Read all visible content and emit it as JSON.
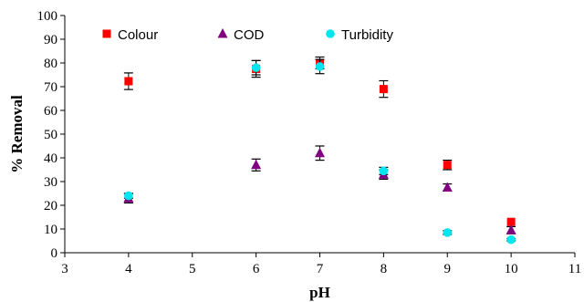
{
  "chart_data": {
    "type": "scatter",
    "xlabel": "pH",
    "ylabel": "% Removal",
    "xlim": [
      3,
      11
    ],
    "ylim": [
      0,
      100
    ],
    "xticks": [
      3,
      4,
      5,
      6,
      7,
      8,
      9,
      10,
      11
    ],
    "yticks": [
      0,
      10,
      20,
      30,
      40,
      50,
      60,
      70,
      80,
      90,
      100
    ],
    "grid": false,
    "legend_position": "top-left",
    "series": [
      {
        "name": "Colour",
        "marker": "square",
        "color": "#ff0000",
        "x": [
          4,
          6,
          7,
          8,
          9,
          10
        ],
        "y": [
          72.3,
          77.5,
          80,
          69,
          37,
          13
        ],
        "err": [
          3.5,
          3.5,
          2.5,
          3.5,
          2,
          0
        ]
      },
      {
        "name": "COD",
        "marker": "triangle",
        "color": "#800080",
        "x": [
          4,
          6,
          7,
          8,
          9,
          10
        ],
        "y": [
          23,
          37,
          42,
          33,
          27.5,
          9.5
        ],
        "err": [
          2,
          2.5,
          3,
          2,
          1.5,
          1.5
        ]
      },
      {
        "name": "Turbidity",
        "marker": "circle",
        "color": "#00e5ee",
        "x": [
          4,
          6,
          7,
          8,
          9,
          10
        ],
        "y": [
          24,
          78,
          78.5,
          34.5,
          8.5,
          5.5
        ],
        "err": [
          1,
          3,
          3,
          1.5,
          0.8,
          0.5
        ]
      }
    ]
  }
}
